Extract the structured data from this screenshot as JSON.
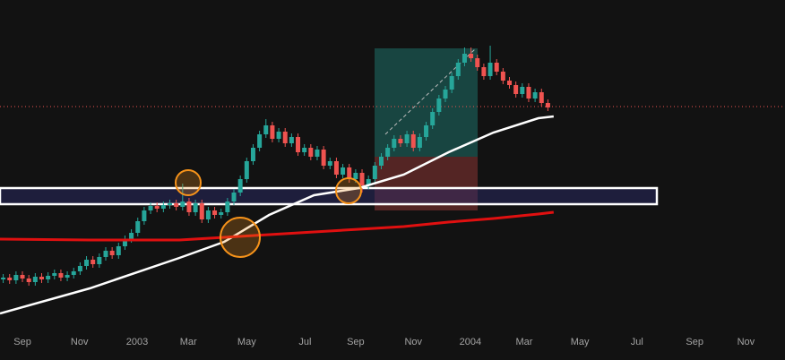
{
  "chart_data": {
    "type": "candlestick",
    "xlim": [
      0,
      122.5
    ],
    "ylim": [
      0,
      365
    ],
    "xticks": [
      {
        "value": 3.5,
        "label": "Sep"
      },
      {
        "value": 12.4,
        "label": "Nov"
      },
      {
        "value": 21.4,
        "label": "2003"
      },
      {
        "value": 29.4,
        "label": "Mar"
      },
      {
        "value": 38.5,
        "label": "May"
      },
      {
        "value": 47.6,
        "label": "Jul"
      },
      {
        "value": 55.5,
        "label": "Sep"
      },
      {
        "value": 64.5,
        "label": "Nov"
      },
      {
        "value": 73.4,
        "label": "2004"
      },
      {
        "value": 81.8,
        "label": "Mar"
      },
      {
        "value": 90.5,
        "label": "May"
      },
      {
        "value": 99.4,
        "label": "Jul"
      },
      {
        "value": 108.4,
        "label": "Sep"
      },
      {
        "value": 116.4,
        "label": "Nov"
      }
    ],
    "up_color": "#26a69a",
    "down_color": "#ef5350",
    "open": [
      53,
      55,
      52,
      58,
      54,
      50,
      56,
      53,
      57,
      60,
      55,
      58,
      62,
      68,
      75,
      70,
      78,
      85,
      80,
      90,
      98,
      105,
      118,
      130,
      135,
      132,
      136,
      138,
      134,
      140,
      128,
      138,
      120,
      130,
      125,
      128,
      140,
      150,
      165,
      185,
      200,
      215,
      225,
      210,
      218,
      205,
      212,
      195,
      200,
      190,
      198,
      180,
      185,
      170,
      178,
      165,
      172,
      158,
      165,
      180,
      190,
      200,
      210,
      205,
      215,
      200,
      212,
      225,
      240,
      255,
      265,
      280,
      295,
      305,
      300,
      290,
      280,
      295,
      285,
      275,
      270,
      260,
      268,
      255,
      262,
      250
    ],
    "high": [
      59,
      59,
      62,
      62,
      58,
      60,
      60,
      61,
      64,
      64,
      62,
      66,
      72,
      79,
      79,
      82,
      89,
      89,
      94,
      102,
      109,
      122,
      134,
      139,
      139,
      140,
      142,
      142,
      160,
      144,
      142,
      142,
      134,
      134,
      132,
      144,
      154,
      169,
      189,
      204,
      219,
      232,
      229,
      222,
      222,
      216,
      216,
      204,
      204,
      202,
      202,
      189,
      189,
      182,
      182,
      176,
      176,
      169,
      184,
      194,
      204,
      214,
      214,
      219,
      219,
      216,
      229,
      244,
      259,
      269,
      284,
      299,
      312,
      312,
      304,
      294,
      314,
      299,
      289,
      279,
      274,
      272,
      272,
      266,
      266,
      254
    ],
    "low": [
      49,
      48,
      48,
      50,
      46,
      46,
      49,
      49,
      53,
      51,
      51,
      54,
      58,
      64,
      66,
      66,
      74,
      76,
      76,
      86,
      94,
      101,
      114,
      126,
      128,
      128,
      132,
      130,
      130,
      124,
      124,
      116,
      116,
      121,
      121,
      124,
      136,
      146,
      161,
      181,
      196,
      211,
      206,
      206,
      201,
      201,
      191,
      191,
      186,
      186,
      176,
      176,
      166,
      166,
      161,
      161,
      150,
      154,
      161,
      176,
      186,
      196,
      201,
      201,
      196,
      196,
      208,
      221,
      236,
      251,
      261,
      276,
      291,
      296,
      286,
      276,
      276,
      281,
      271,
      266,
      256,
      256,
      251,
      251,
      246,
      241
    ],
    "close": [
      55,
      52,
      58,
      54,
      50,
      56,
      53,
      57,
      60,
      55,
      58,
      62,
      68,
      75,
      70,
      78,
      85,
      80,
      90,
      98,
      105,
      118,
      130,
      135,
      132,
      136,
      138,
      134,
      140,
      128,
      138,
      120,
      130,
      125,
      128,
      140,
      150,
      165,
      185,
      200,
      215,
      225,
      210,
      218,
      205,
      212,
      195,
      200,
      190,
      198,
      180,
      185,
      170,
      178,
      165,
      172,
      158,
      165,
      180,
      190,
      200,
      210,
      205,
      215,
      200,
      212,
      225,
      240,
      255,
      265,
      280,
      295,
      305,
      300,
      290,
      280,
      295,
      285,
      275,
      270,
      260,
      268,
      255,
      262,
      250,
      245
    ],
    "lines": [
      {
        "color": "#ffffff",
        "x": [
          0,
          14,
          28,
          35,
          42,
          49,
          56,
          63,
          70,
          77,
          84,
          86.4
        ],
        "values": [
          15,
          43,
          77,
          95,
          125,
          147,
          155,
          170,
          195,
          217,
          233,
          235
        ]
      },
      {
        "color": "#e01010",
        "x": [
          0,
          14,
          28,
          42,
          56,
          63,
          70,
          77,
          84,
          86.4
        ],
        "values": [
          98,
          97,
          97,
          103,
          109,
          112,
          117,
          121,
          126,
          128
        ]
      }
    ]
  }
}
